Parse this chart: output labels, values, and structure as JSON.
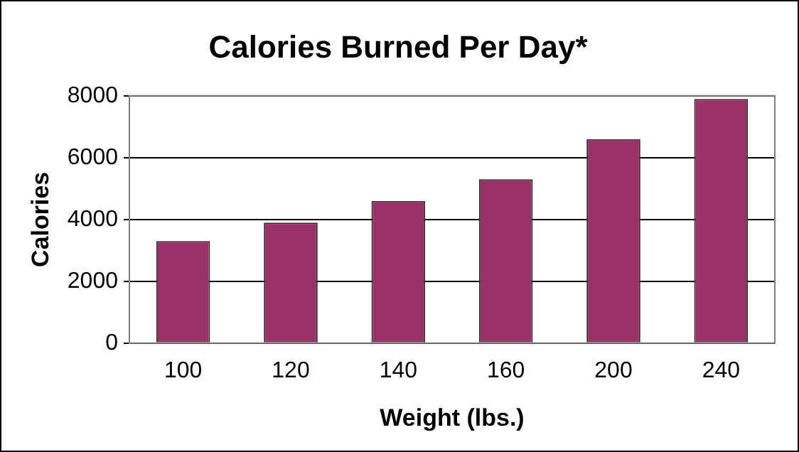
{
  "chart_data": {
    "type": "bar",
    "title": "Calories Burned Per Day*",
    "xlabel": "Weight (lbs.)",
    "ylabel": "Calories",
    "categories": [
      "100",
      "120",
      "140",
      "160",
      "200",
      "240"
    ],
    "values": [
      3300,
      3900,
      4600,
      5300,
      6600,
      7900
    ],
    "color": "#993366",
    "ylim": [
      0,
      8000
    ],
    "yticks": [
      0,
      2000,
      4000,
      6000,
      8000
    ],
    "grid": "y",
    "legend": false
  }
}
